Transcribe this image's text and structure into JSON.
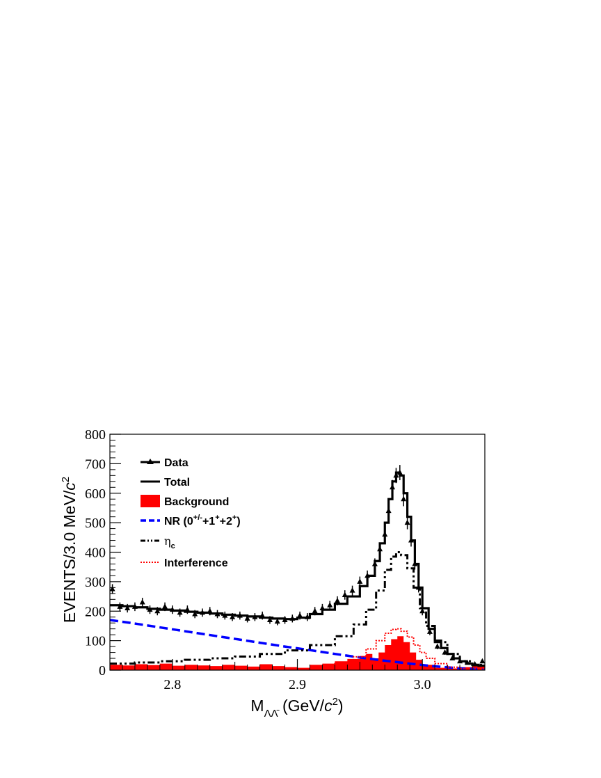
{
  "chart_data": {
    "type": "line",
    "xlim": [
      2.75,
      3.05
    ],
    "ylim": [
      0,
      800
    ],
    "x_ticks": [
      2.8,
      2.9,
      3.0
    ],
    "x_tick_labels": [
      "2.8",
      "2.9",
      "3.0"
    ],
    "y_ticks": [
      0,
      100,
      200,
      300,
      400,
      500,
      600,
      700,
      800
    ],
    "y_tick_labels": [
      "0",
      "100",
      "200",
      "300",
      "400",
      "500",
      "600",
      "700",
      "800"
    ],
    "xlabel": {
      "main": "M",
      "sub": "ΛΛ̄",
      "unit_prefix": " (GeV/",
      "unit_italic": "c",
      "unit_sup": "2",
      "unit_suffix": ")"
    },
    "ylabel": {
      "main": "EVENTS/3.0 MeV/",
      "italic": "c",
      "sup": "2"
    },
    "legend_position": "top-left",
    "legend": [
      {
        "key": "data",
        "label": "Data"
      },
      {
        "key": "total",
        "label": "Total"
      },
      {
        "key": "background",
        "label": "Background"
      },
      {
        "key": "nr",
        "label": "NR (0",
        "sup1": "+/-",
        "mid1": "+1",
        "sup2": "+",
        "mid2": "+2",
        "sup3": "+",
        "end": ")"
      },
      {
        "key": "etac",
        "label": "η",
        "sub": "c"
      },
      {
        "key": "interference",
        "label": "Interference"
      }
    ],
    "colors": {
      "data": "#000000",
      "total": "#000000",
      "background": "#ff0000",
      "nr": "#0000ff",
      "etac": "#000000",
      "interference": "#ff0000"
    },
    "series": [
      {
        "name": "Data",
        "key": "data",
        "x": [
          2.752,
          2.758,
          2.764,
          2.77,
          2.776,
          2.782,
          2.788,
          2.794,
          2.8,
          2.806,
          2.812,
          2.818,
          2.824,
          2.83,
          2.836,
          2.842,
          2.848,
          2.854,
          2.86,
          2.866,
          2.872,
          2.878,
          2.884,
          2.89,
          2.896,
          2.902,
          2.908,
          2.914,
          2.92,
          2.926,
          2.932,
          2.938,
          2.944,
          2.95,
          2.956,
          2.962,
          2.966,
          2.97,
          2.973,
          2.976,
          2.979,
          2.982,
          2.985,
          2.988,
          2.991,
          2.994,
          2.997,
          3.0,
          3.006,
          3.012,
          3.018,
          3.024,
          3.03,
          3.036,
          3.042,
          3.048
        ],
        "y": [
          275,
          215,
          210,
          215,
          230,
          205,
          200,
          215,
          205,
          195,
          205,
          190,
          195,
          200,
          190,
          185,
          180,
          185,
          175,
          180,
          185,
          170,
          165,
          170,
          175,
          185,
          180,
          200,
          210,
          220,
          235,
          255,
          270,
          300,
          320,
          360,
          410,
          460,
          540,
          620,
          660,
          670,
          580,
          500,
          440,
          360,
          280,
          200,
          130,
          80,
          60,
          40,
          30,
          25,
          20,
          30
        ]
      },
      {
        "name": "Total",
        "key": "total",
        "x": [
          2.75,
          2.76,
          2.77,
          2.78,
          2.79,
          2.8,
          2.81,
          2.82,
          2.83,
          2.84,
          2.85,
          2.86,
          2.87,
          2.88,
          2.89,
          2.9,
          2.91,
          2.92,
          2.93,
          2.94,
          2.95,
          2.956,
          2.962,
          2.966,
          2.97,
          2.973,
          2.976,
          2.979,
          2.982,
          2.985,
          2.988,
          2.991,
          2.994,
          2.997,
          3.0,
          3.005,
          3.01,
          3.015,
          3.02,
          3.025,
          3.03,
          3.035,
          3.04,
          3.045,
          3.05
        ],
        "y": [
          220,
          217,
          213,
          208,
          205,
          202,
          198,
          195,
          192,
          188,
          185,
          182,
          178,
          175,
          173,
          178,
          190,
          205,
          225,
          250,
          285,
          320,
          370,
          430,
          500,
          580,
          640,
          670,
          660,
          600,
          520,
          440,
          360,
          280,
          210,
          140,
          100,
          75,
          55,
          40,
          30,
          22,
          18,
          15,
          12
        ]
      },
      {
        "name": "NR (0+/-+1++2+)",
        "key": "nr",
        "x": [
          2.75,
          2.77,
          2.79,
          2.81,
          2.83,
          2.85,
          2.87,
          2.89,
          2.91,
          2.93,
          2.95,
          2.97,
          2.99,
          3.01,
          3.03,
          3.05
        ],
        "y": [
          170,
          158,
          145,
          132,
          119,
          106,
          93,
          80,
          68,
          55,
          43,
          32,
          22,
          13,
          6,
          2
        ]
      },
      {
        "name": "ηc",
        "key": "etac",
        "x": [
          2.75,
          2.77,
          2.79,
          2.81,
          2.83,
          2.85,
          2.87,
          2.89,
          2.91,
          2.93,
          2.945,
          2.955,
          2.963,
          2.97,
          2.975,
          2.979,
          2.983,
          2.988,
          2.993,
          2.998,
          3.003,
          3.01,
          3.02,
          3.03,
          3.04,
          3.05
        ],
        "y": [
          22,
          26,
          30,
          35,
          40,
          46,
          55,
          67,
          85,
          115,
          155,
          205,
          270,
          340,
          385,
          400,
          390,
          345,
          280,
          210,
          150,
          95,
          55,
          30,
          18,
          12
        ]
      },
      {
        "name": "Interference",
        "key": "interference",
        "x": [
          2.75,
          2.78,
          2.81,
          2.84,
          2.87,
          2.89,
          2.91,
          2.93,
          2.945,
          2.955,
          2.963,
          2.97,
          2.975,
          2.979,
          2.983,
          2.988,
          2.993,
          2.998,
          3.003,
          3.01,
          3.02,
          3.03,
          3.05
        ],
        "y": [
          5,
          5,
          4,
          3,
          3,
          4,
          8,
          22,
          45,
          72,
          100,
          125,
          138,
          140,
          132,
          112,
          85,
          60,
          40,
          22,
          10,
          5,
          3
        ]
      },
      {
        "name": "Background",
        "key": "background",
        "x": [
          2.75,
          2.76,
          2.77,
          2.78,
          2.79,
          2.8,
          2.81,
          2.82,
          2.83,
          2.84,
          2.85,
          2.86,
          2.87,
          2.88,
          2.89,
          2.9,
          2.91,
          2.92,
          2.93,
          2.94,
          2.95,
          2.955,
          2.96,
          2.965,
          2.97,
          2.975,
          2.98,
          2.985,
          2.99,
          2.995,
          3.0,
          3.01,
          3.02,
          3.03,
          3.04,
          3.05
        ],
        "y": [
          18,
          16,
          20,
          17,
          22,
          15,
          18,
          16,
          14,
          18,
          15,
          12,
          20,
          14,
          10,
          8,
          18,
          22,
          30,
          38,
          48,
          55,
          40,
          60,
          85,
          105,
          115,
          95,
          60,
          35,
          18,
          8,
          6,
          10,
          18,
          15
        ]
      }
    ]
  }
}
